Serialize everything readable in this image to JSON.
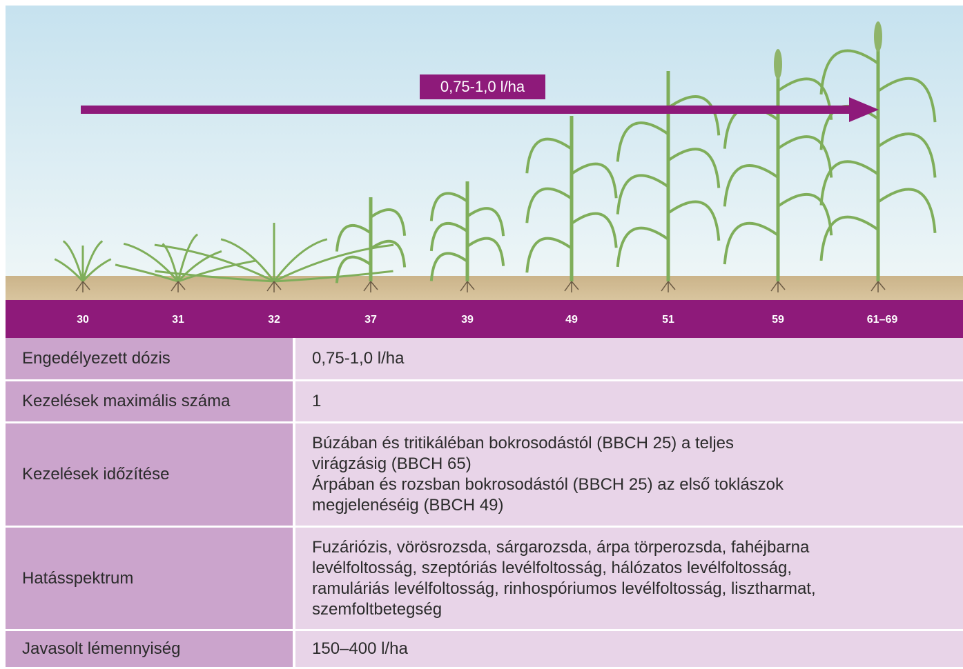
{
  "arrow_label": "0,75-1,0 l/ha",
  "stages": [
    "30",
    "31",
    "32",
    "37",
    "39",
    "49",
    "51",
    "59",
    "61–69"
  ],
  "table": {
    "rows": [
      {
        "label": "Engedélyezett dózis",
        "lines": [
          "0,75-1,0 l/ha"
        ]
      },
      {
        "label": "Kezelések maximális száma",
        "lines": [
          "1"
        ]
      },
      {
        "label": "Kezelések időzítése",
        "lines": [
          "Búzában és tritikáléban bokrosodástól (BBCH 25) a teljes",
          "virágzásig (BBCH 65)",
          "Árpában és rozsban bokrosodástól (BBCH 25) az első toklászok",
          "megjelenéséig (BBCH 49)"
        ]
      },
      {
        "label": "Hatásspektrum",
        "lines": [
          "Fuzáriózis, vörösrozsda, sárgarozsda, árpa törperozsda, fahéjbarna",
          "levélfoltosság, szeptóriás levélfoltosság, hálózatos levélfoltosság,",
          "ramuláriás levélfoltosság, rinhospóriumos levélfoltosság, lisztharmat,",
          "szemfoltbetegség"
        ]
      },
      {
        "label": "Javasolt lémennyiség",
        "lines": [
          "150–400 l/ha"
        ]
      }
    ]
  }
}
